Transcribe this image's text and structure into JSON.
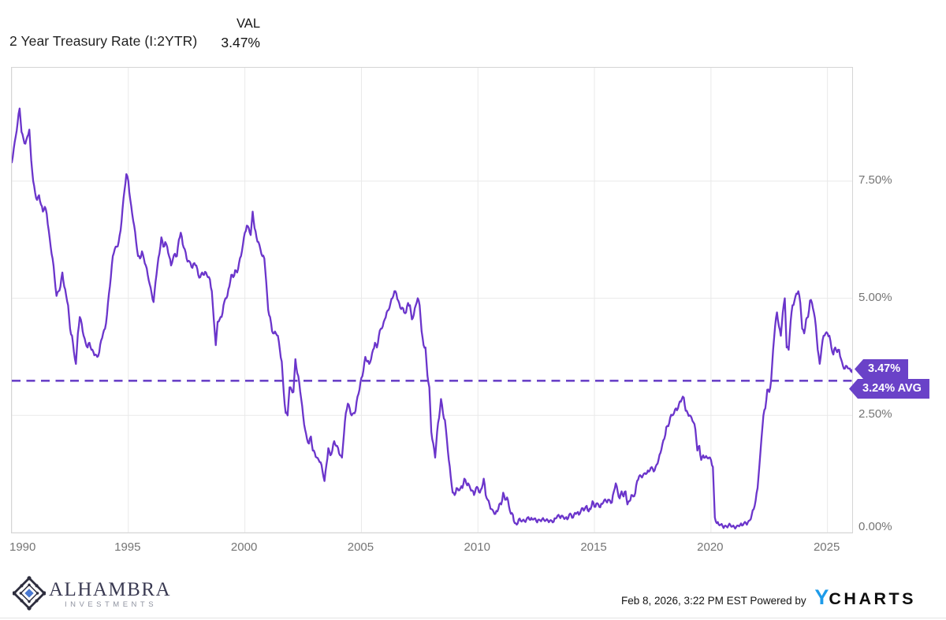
{
  "header": {
    "title": "2 Year Treasury Rate (I:2YTR)",
    "val_label": "VAL",
    "val_value": "3.47%"
  },
  "badges": {
    "last_label": "3.47%",
    "avg_label": "3.24% AVG"
  },
  "footer": {
    "timestamp": "Feb 8, 2026, 3:22 PM EST",
    "powered_by": "Powered by",
    "ycharts_y": "Y",
    "ycharts_rest": "CHARTS",
    "logo_title": "ALHAMBRA",
    "logo_subtitle": "INVESTMENTS"
  },
  "colors": {
    "line": "#6B35CB",
    "accent": "#6A42C8",
    "ycharts_blue": "#1E9BE9",
    "grid": "#e9e9e9",
    "border": "#d5d5d5",
    "axis_text": "#757575"
  },
  "chart_data": {
    "type": "line",
    "series_name": "2 Year Treasury Rate",
    "title": "2 Year Treasury Rate (I:2YTR)",
    "last_value": 3.47,
    "avg_value": 3.24,
    "start_year": 1990,
    "points_per_year": 12,
    "x_domain": [
      1990,
      2026.06
    ],
    "y_domain": [
      0,
      9.92
    ],
    "grid": true,
    "legend_position": "none",
    "y_ticks": [
      {
        "label": "7.50%",
        "value": 7.5
      },
      {
        "label": "5.00%",
        "value": 5.0
      },
      {
        "label": "2.50%",
        "value": 2.5
      },
      {
        "label": "0.00%",
        "value": 0.0
      }
    ],
    "x_ticks": [
      {
        "label": "1990",
        "value": 1990
      },
      {
        "label": "1995",
        "value": 1995
      },
      {
        "label": "2000",
        "value": 2000
      },
      {
        "label": "2005",
        "value": 2005
      },
      {
        "label": "2010",
        "value": 2010
      },
      {
        "label": "2015",
        "value": 2015
      },
      {
        "label": "2020",
        "value": 2020
      },
      {
        "label": "2025",
        "value": 2025
      }
    ],
    "values": [
      7.9,
      8.2,
      8.45,
      8.75,
      9.05,
      8.55,
      8.4,
      8.3,
      8.45,
      8.6,
      7.95,
      7.5,
      7.25,
      7.1,
      7.2,
      7.0,
      6.85,
      6.95,
      6.8,
      6.45,
      6.1,
      5.85,
      5.45,
      5.05,
      5.15,
      5.25,
      5.55,
      5.25,
      5.05,
      4.85,
      4.35,
      4.2,
      3.85,
      3.6,
      4.25,
      4.6,
      4.45,
      4.2,
      4.05,
      3.95,
      4.05,
      3.9,
      3.85,
      3.8,
      3.75,
      3.85,
      4.1,
      4.25,
      4.35,
      4.65,
      5.1,
      5.45,
      5.9,
      6.05,
      6.1,
      6.2,
      6.45,
      6.9,
      7.3,
      7.65,
      7.5,
      7.1,
      6.8,
      6.55,
      6.2,
      5.9,
      5.85,
      6.0,
      5.85,
      5.7,
      5.5,
      5.3,
      5.1,
      4.92,
      5.35,
      5.7,
      5.95,
      6.3,
      6.1,
      6.2,
      6.1,
      5.9,
      5.7,
      5.85,
      5.95,
      5.9,
      6.25,
      6.4,
      6.15,
      6.05,
      5.85,
      5.8,
      5.75,
      5.65,
      5.75,
      5.7,
      5.5,
      5.45,
      5.55,
      5.5,
      5.55,
      5.45,
      5.4,
      5.15,
      4.55,
      4.0,
      4.5,
      4.55,
      4.6,
      4.85,
      5.0,
      5.05,
      5.25,
      5.5,
      5.45,
      5.6,
      5.55,
      5.75,
      5.9,
      6.15,
      6.4,
      6.55,
      6.5,
      6.35,
      6.85,
      6.5,
      6.3,
      6.2,
      6.05,
      5.9,
      5.85,
      5.35,
      4.75,
      4.6,
      4.3,
      4.25,
      4.25,
      4.2,
      3.9,
      3.65,
      3.0,
      2.55,
      2.5,
      3.1,
      3.05,
      3.0,
      3.7,
      3.4,
      3.2,
      2.85,
      2.5,
      2.2,
      2.0,
      1.9,
      2.05,
      1.75,
      1.7,
      1.6,
      1.55,
      1.5,
      1.3,
      1.1,
      1.45,
      1.8,
      1.65,
      1.75,
      1.95,
      1.85,
      1.8,
      1.65,
      1.6,
      2.1,
      2.55,
      2.75,
      2.65,
      2.5,
      2.55,
      2.6,
      2.9,
      3.05,
      3.3,
      3.45,
      3.75,
      3.65,
      3.6,
      3.7,
      3.9,
      4.05,
      3.95,
      4.2,
      4.35,
      4.4,
      4.55,
      4.7,
      4.75,
      4.9,
      5.0,
      5.15,
      5.1,
      4.95,
      4.8,
      4.8,
      4.7,
      4.7,
      4.9,
      4.85,
      4.55,
      4.65,
      4.85,
      5.0,
      4.85,
      4.3,
      4.0,
      3.95,
      3.35,
      3.1,
      2.15,
      1.9,
      1.6,
      2.15,
      2.45,
      2.85,
      2.55,
      2.4,
      2.0,
      1.55,
      1.2,
      0.85,
      0.8,
      0.95,
      0.9,
      0.95,
      0.95,
      1.15,
      1.05,
      1.05,
      0.95,
      0.9,
      0.8,
      0.95,
      0.95,
      0.85,
      0.95,
      1.15,
      0.8,
      0.7,
      0.6,
      0.5,
      0.45,
      0.4,
      0.45,
      0.6,
      0.6,
      0.85,
      0.7,
      0.75,
      0.55,
      0.4,
      0.38,
      0.2,
      0.17,
      0.28,
      0.25,
      0.26,
      0.24,
      0.28,
      0.33,
      0.27,
      0.28,
      0.3,
      0.25,
      0.27,
      0.26,
      0.28,
      0.27,
      0.26,
      0.26,
      0.25,
      0.25,
      0.23,
      0.3,
      0.36,
      0.34,
      0.36,
      0.33,
      0.31,
      0.28,
      0.38,
      0.38,
      0.32,
      0.42,
      0.42,
      0.38,
      0.46,
      0.52,
      0.5,
      0.57,
      0.45,
      0.5,
      0.67,
      0.55,
      0.62,
      0.6,
      0.54,
      0.61,
      0.69,
      0.67,
      0.7,
      0.68,
      0.64,
      0.88,
      1.05,
      0.87,
      0.73,
      0.88,
      0.77,
      0.88,
      0.6,
      0.67,
      0.8,
      0.77,
      0.84,
      1.1,
      1.2,
      1.2,
      1.22,
      1.27,
      1.27,
      1.3,
      1.38,
      1.36,
      1.33,
      1.45,
      1.55,
      1.7,
      1.89,
      2.0,
      2.25,
      2.27,
      2.45,
      2.5,
      2.55,
      2.65,
      2.65,
      2.8,
      2.85,
      2.88,
      2.6,
      2.55,
      2.5,
      2.45,
      2.35,
      2.2,
      1.75,
      1.85,
      1.55,
      1.65,
      1.6,
      1.6,
      1.6,
      1.55,
      1.4,
      0.32,
      0.2,
      0.17,
      0.17,
      0.14,
      0.14,
      0.13,
      0.15,
      0.16,
      0.13,
      0.12,
      0.12,
      0.15,
      0.16,
      0.15,
      0.2,
      0.2,
      0.22,
      0.26,
      0.38,
      0.5,
      0.68,
      0.95,
      1.45,
      2.0,
      2.5,
      2.65,
      3.05,
      3.0,
      3.25,
      3.9,
      4.4,
      4.7,
      4.4,
      4.2,
      4.7,
      5.0,
      3.95,
      3.9,
      4.5,
      4.85,
      4.95,
      5.1,
      5.15,
      4.9,
      4.35,
      4.25,
      4.55,
      4.6,
      4.95,
      4.9,
      4.7,
      4.4,
      3.9,
      3.6,
      3.95,
      4.2,
      4.25,
      4.25,
      4.2,
      3.95,
      3.8,
      3.95,
      3.85,
      3.9,
      3.7,
      3.55,
      3.5,
      3.55,
      3.5,
      3.45,
      3.47
    ]
  }
}
